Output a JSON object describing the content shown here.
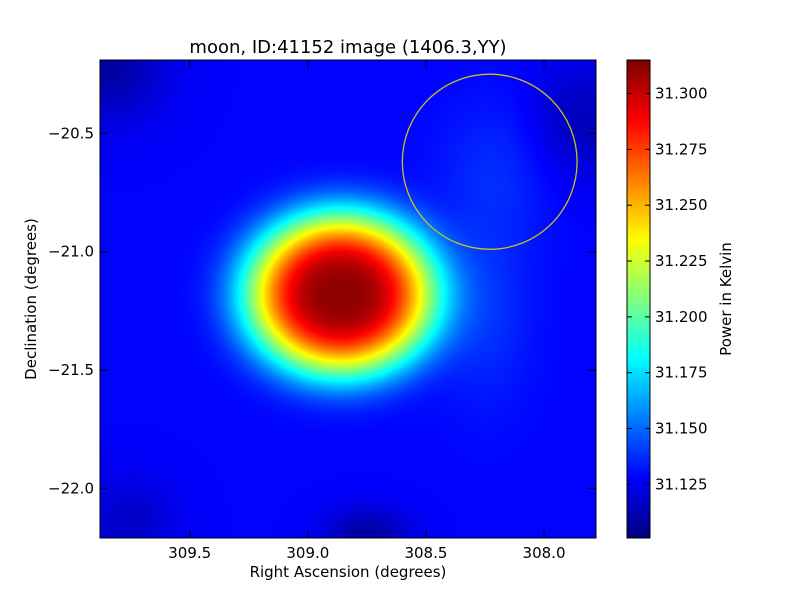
{
  "chart_data": {
    "type": "heatmap",
    "title": "moon, ID:41152 image (1406.3,YY)",
    "xlabel": "Right Ascension (degrees)",
    "ylabel": "Declination (degrees)",
    "colorbar_label": "Power in Kelvin",
    "colormap": "jet",
    "xlim": [
      309.88,
      307.78
    ],
    "ylim": [
      -22.21,
      -20.19
    ],
    "xticks": [
      309.5,
      309.0,
      308.5,
      308.0
    ],
    "xtick_labels": [
      "309.5",
      "309.0",
      "308.5",
      "308.0"
    ],
    "yticks": [
      -20.5,
      -21.0,
      -21.5,
      -22.0
    ],
    "ytick_labels": [
      "−20.5",
      "−21.0",
      "−21.5",
      "−22.0"
    ],
    "color_range": [
      31.101,
      31.315
    ],
    "colorbar_ticks": [
      31.125,
      31.15,
      31.175,
      31.2,
      31.225,
      31.25,
      31.275,
      31.3
    ],
    "colorbar_tick_labels": [
      "31.125",
      "31.150",
      "31.175",
      "31.200",
      "31.225",
      "31.250",
      "31.275",
      "31.300"
    ],
    "peak": {
      "ra": 308.86,
      "dec": -21.18,
      "value": 31.312
    },
    "background_level": 31.128,
    "circle": {
      "ra_center": 308.23,
      "dec_center": -20.62,
      "radius_deg": 0.37,
      "color": "#c9c020"
    }
  }
}
